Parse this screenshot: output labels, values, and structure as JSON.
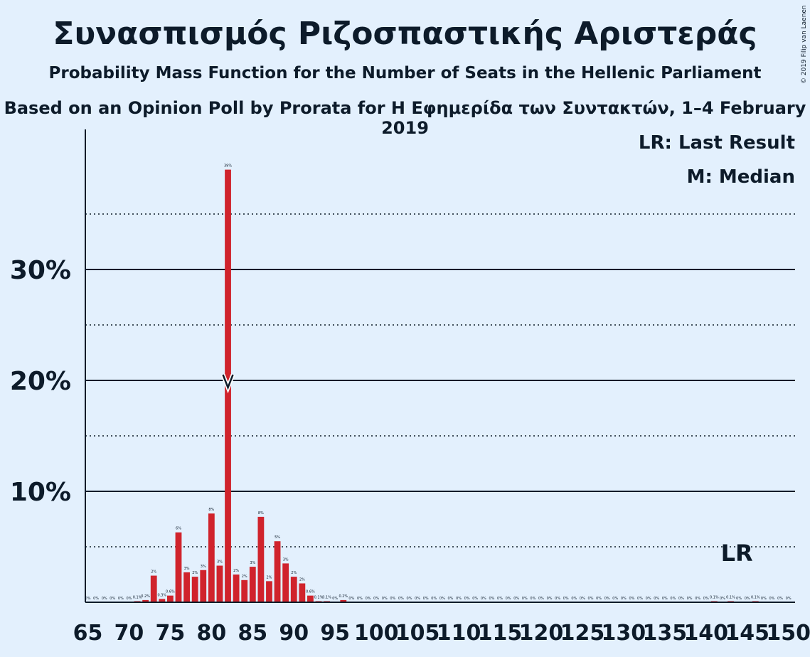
{
  "title": "Συνασπισμός Ριζοσπαστικής Αριστεράς",
  "subtitle": "Probability Mass Function for the Number of Seats in the Hellenic Parliament",
  "subtitle2": "Based on an Opinion Poll by Prorata for Η Εφημερίδα των Συντακτών, 1–4 February 2019",
  "copyright": "© 2019 Filip van Laenen",
  "colors": {
    "background": "#e3f0fd",
    "bar": "#d0232c",
    "text": "#0d1b2a"
  },
  "chart_data": {
    "type": "bar",
    "x": [
      65,
      66,
      67,
      68,
      69,
      70,
      71,
      72,
      73,
      74,
      75,
      76,
      77,
      78,
      79,
      80,
      81,
      82,
      83,
      84,
      85,
      86,
      87,
      88,
      89,
      90,
      91,
      92,
      93,
      94,
      95,
      96,
      97,
      98,
      99,
      100,
      101,
      102,
      103,
      104,
      105,
      106,
      107,
      108,
      109,
      110,
      111,
      112,
      113,
      114,
      115,
      116,
      117,
      118,
      119,
      120,
      121,
      122,
      123,
      124,
      125,
      126,
      127,
      128,
      129,
      130,
      131,
      132,
      133,
      134,
      135,
      136,
      137,
      138,
      139,
      140,
      141,
      142,
      143,
      144,
      145,
      146,
      147,
      148,
      149,
      150
    ],
    "values": [
      0,
      0,
      0,
      0,
      0,
      0,
      0.1,
      0.2,
      2.4,
      0.3,
      0.6,
      6.3,
      2.7,
      2.3,
      2.9,
      8.0,
      3.3,
      39.0,
      2.5,
      2.0,
      3.2,
      7.7,
      1.9,
      5.5,
      3.5,
      2.3,
      1.7,
      0.6,
      0.1,
      0.1,
      0,
      0.2,
      0,
      0,
      0,
      0,
      0,
      0,
      0,
      0,
      0,
      0,
      0,
      0,
      0,
      0,
      0,
      0,
      0,
      0,
      0,
      0,
      0,
      0,
      0,
      0,
      0,
      0,
      0,
      0,
      0,
      0,
      0,
      0,
      0,
      0,
      0,
      0,
      0,
      0,
      0,
      0,
      0,
      0,
      0,
      0,
      0.1,
      0,
      0.1,
      0,
      0,
      0.1,
      0,
      0,
      0,
      0
    ],
    "value_labels": [
      "0%",
      "0%",
      "0%",
      "0%",
      "0%",
      "0%",
      "0.1%",
      "0.2%",
      "2%",
      "0.3%",
      "0.6%",
      "6%",
      "3%",
      "2%",
      "3%",
      "8%",
      "3%",
      "39%",
      "2%",
      "2%",
      "3%",
      "8%",
      "2%",
      "5%",
      "3%",
      "2%",
      "2%",
      "0.6%",
      "0.1%",
      "0.1%",
      "0%",
      "0.2%",
      "0%",
      "0%",
      "0%",
      "0%",
      "0%",
      "0%",
      "0%",
      "0%",
      "0%",
      "0%",
      "0%",
      "0%",
      "0%",
      "0%",
      "0%",
      "0%",
      "0%",
      "0%",
      "0%",
      "0%",
      "0%",
      "0%",
      "0%",
      "0%",
      "0%",
      "0%",
      "0%",
      "0%",
      "0%",
      "0%",
      "0%",
      "0%",
      "0%",
      "0%",
      "0%",
      "0%",
      "0%",
      "0%",
      "0%",
      "0%",
      "0%",
      "0%",
      "0%",
      "0%",
      "0.1%",
      "0%",
      "0.1%",
      "0%",
      "0%",
      "0.1%",
      "0%",
      "0%",
      "0%",
      "0%"
    ],
    "x_tick_labels": [
      "65",
      "70",
      "75",
      "80",
      "85",
      "90",
      "95",
      "100",
      "105",
      "110",
      "115",
      "120",
      "125",
      "130",
      "135",
      "140",
      "145",
      "150"
    ],
    "y_tick_labels": [
      "10%",
      "20%",
      "30%"
    ],
    "ylim": [
      0,
      42
    ],
    "median": 82,
    "last_result": 144,
    "legend": {
      "last_result": "LR: Last Result",
      "median": "M: Median"
    },
    "lr_label": "LR"
  }
}
